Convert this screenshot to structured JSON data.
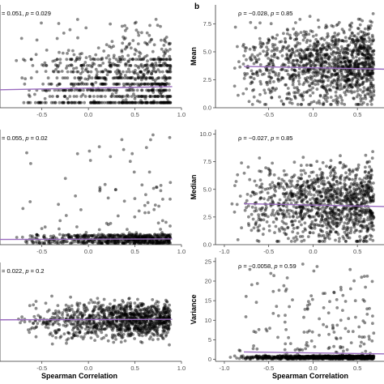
{
  "figure": {
    "panel_label": "b",
    "xlabel": "Spearman Correlation",
    "point_color": "#000000",
    "point_opacity": 0.45,
    "fit_color": "#9a6bbf",
    "axis_color": "#333333"
  },
  "chart_data": [
    {
      "type": "scatter",
      "panel": "left-top",
      "ylabel": "",
      "annotation": {
        "prefix": "= 0.051, ",
        "p_symbol": "p",
        "p_value": " = 0.029"
      },
      "xlim": [
        -0.95,
        1.0
      ],
      "xticks": [
        -0.5,
        0.0,
        0.5,
        1.0
      ],
      "xtick_labels": [
        "-0.5",
        "0.0",
        "0.5",
        "1.0"
      ],
      "ylim": [
        0,
        10
      ],
      "yticks": [],
      "ytick_labels": [],
      "fit": {
        "x": [
          -0.95,
          0.9
        ],
        "y": [
          1.75,
          2.05
        ]
      },
      "scatter_model": {
        "n": 900,
        "seed": 11,
        "mode": "discrete-top",
        "ymin": 0.5,
        "ymax": 9.5,
        "levels": 8
      }
    },
    {
      "type": "scatter",
      "panel": "left-middle",
      "ylabel": "",
      "annotation": {
        "prefix": "= 0.055, ",
        "p_symbol": "p",
        "p_value": " = 0.02"
      },
      "xlim": [
        -0.95,
        1.0
      ],
      "xticks": [
        -0.5,
        0.0,
        0.5,
        1.0
      ],
      "xtick_labels": [
        "-0.5",
        "0.0",
        "0.5",
        "1.0"
      ],
      "ylim": [
        0,
        10
      ],
      "yticks": [],
      "ytick_labels": [],
      "fit": {
        "x": [
          -0.95,
          0.9
        ],
        "y": [
          0.45,
          0.5
        ]
      },
      "scatter_model": {
        "n": 700,
        "seed": 23,
        "mode": "floor",
        "ymin": 0.1,
        "ymax": 9.7
      }
    },
    {
      "type": "scatter",
      "panel": "left-bottom",
      "ylabel": "",
      "annotation": {
        "prefix": "= 0.022, ",
        "p_symbol": "p",
        "p_value": " = 0.2"
      },
      "xlim": [
        -0.95,
        1.0
      ],
      "xticks": [
        -0.5,
        0.0,
        0.5,
        1.0
      ],
      "xtick_labels": [
        "-0.5",
        "0.0",
        "0.5",
        "1.0"
      ],
      "ylim": [
        0,
        10
      ],
      "yticks": [],
      "ytick_labels": [],
      "fit": {
        "x": [
          -0.95,
          0.9
        ],
        "y": [
          4.2,
          4.25
        ]
      },
      "scatter_model": {
        "n": 1100,
        "seed": 37,
        "mode": "band",
        "ymin": 1.5,
        "ymax": 7.0
      }
    },
    {
      "type": "scatter",
      "panel": "right-top",
      "ylabel": "Mean",
      "annotation": {
        "prefix": "ρ = −0.028, ",
        "p_symbol": "p",
        "p_value": " = 0.85"
      },
      "xlim": [
        -1.1,
        0.8
      ],
      "xticks": [
        -0.5,
        0.0,
        0.5
      ],
      "xtick_labels": [
        "-0.5",
        "0.0",
        "0.5"
      ],
      "ylim": [
        0,
        9.2
      ],
      "yticks": [
        0,
        2.5,
        5.0,
        7.5
      ],
      "ytick_labels": [
        "0.0",
        "2.5",
        "5.0",
        "7.5"
      ],
      "fit": {
        "x": [
          -0.78,
          0.8
        ],
        "y": [
          3.7,
          3.45
        ]
      },
      "scatter_model": {
        "n": 1300,
        "seed": 41,
        "mode": "cloud",
        "ymin": 0.3,
        "ymax": 8.6
      }
    },
    {
      "type": "scatter",
      "panel": "right-middle",
      "ylabel": "Median",
      "annotation": {
        "prefix": "ρ = −0.027, ",
        "p_symbol": "p",
        "p_value": " = 0.85"
      },
      "xlim": [
        -1.1,
        0.8
      ],
      "xticks": [
        -1.0,
        -0.5,
        0.0,
        0.5
      ],
      "xtick_labels": [
        "-1.0",
        "-0.5",
        "0.0",
        "0.5"
      ],
      "ylim": [
        0,
        10.4
      ],
      "yticks": [
        0,
        2.5,
        5.0,
        7.5,
        10.0
      ],
      "ytick_labels": [
        "0.0",
        "2.5",
        "5.0",
        "7.5",
        "10.0"
      ],
      "fit": {
        "x": [
          -0.78,
          0.8
        ],
        "y": [
          3.7,
          3.45
        ]
      },
      "scatter_model": {
        "n": 1200,
        "seed": 53,
        "mode": "cloud",
        "ymin": 0.3,
        "ymax": 9.0
      }
    },
    {
      "type": "scatter",
      "panel": "right-bottom",
      "ylabel": "Variance",
      "annotation": {
        "prefix": "ρ = −0.0058, ",
        "p_symbol": "p",
        "p_value": " = 0.59"
      },
      "xlim": [
        -1.1,
        0.8
      ],
      "xticks": [
        -1.0,
        -0.5,
        0.0,
        0.5
      ],
      "xtick_labels": [
        "-1.0",
        "-0.5",
        "0.0",
        "0.5"
      ],
      "ylim": [
        -0.5,
        26
      ],
      "yticks": [
        0,
        5,
        10,
        15,
        20,
        25
      ],
      "ytick_labels": [
        "0",
        "5",
        "10",
        "15",
        "20",
        "25"
      ],
      "fit": {
        "x": [
          -0.78,
          0.8
        ],
        "y": [
          1.9,
          1.4
        ]
      },
      "scatter_model": {
        "n": 1000,
        "seed": 67,
        "mode": "floor",
        "ymin": 0.1,
        "ymax": 25
      }
    }
  ]
}
